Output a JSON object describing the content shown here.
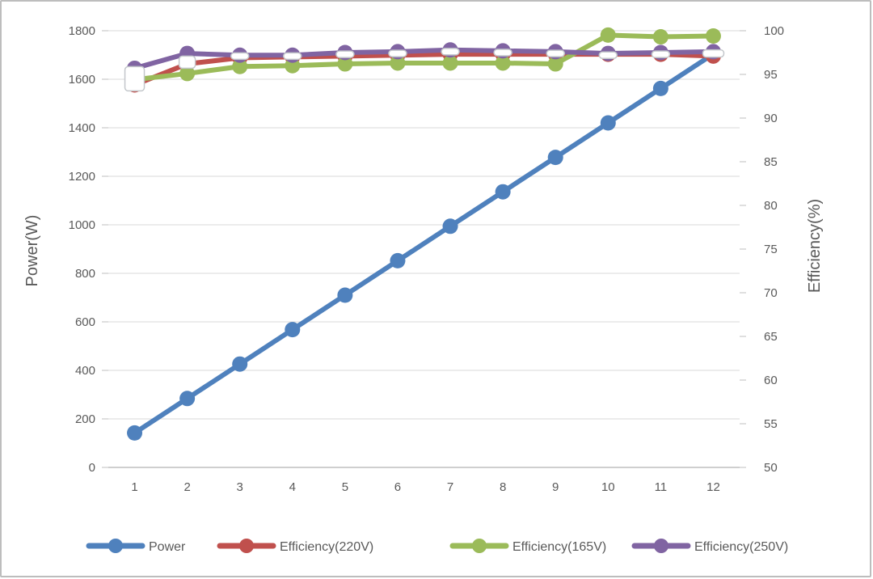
{
  "chart_data": {
    "type": "line",
    "title": "",
    "x_labels": [
      "1",
      "2",
      "3",
      "4",
      "5",
      "6",
      "7",
      "8",
      "9",
      "10",
      "11",
      "12"
    ],
    "axes": {
      "left": {
        "title": "Power(W)",
        "min": 0,
        "max": 1800,
        "step": 200,
        "ticks": [
          "1800",
          "1600",
          "1400",
          "1200",
          "1000",
          "800",
          "600",
          "400",
          "200",
          "0"
        ]
      },
      "right": {
        "title": "Efficiency(%)",
        "min": 50,
        "max": 100,
        "step": 5,
        "ticks": [
          "100",
          "95",
          "90",
          "85",
          "80",
          "75",
          "70",
          "65",
          "60",
          "55",
          "50"
        ]
      }
    },
    "series": [
      {
        "name": "Power",
        "axis": "left",
        "color": "#4F81BD",
        "marker": "circle",
        "values": [
          142,
          284,
          426,
          568,
          710,
          852,
          994,
          1136,
          1278,
          1420,
          1562,
          1704
        ]
      },
      {
        "name": "Efficiency(220V)",
        "axis": "right",
        "color": "#C0504D",
        "marker": "circle",
        "values": [
          93.8,
          96.2,
          96.9,
          97.0,
          97.1,
          97.2,
          97.3,
          97.3,
          97.3,
          97.3,
          97.3,
          97.1
        ]
      },
      {
        "name": "Efficiency(165V)",
        "axis": "right",
        "color": "#9BBB59",
        "marker": "circle",
        "values": [
          94.4,
          95.1,
          95.9,
          96.0,
          96.2,
          96.3,
          96.3,
          96.3,
          96.2,
          99.5,
          99.3,
          99.4
        ]
      },
      {
        "name": "Efficiency(250V)",
        "axis": "right",
        "color": "#8064A2",
        "marker": "circle",
        "values": [
          95.7,
          97.4,
          97.2,
          97.2,
          97.5,
          97.6,
          97.8,
          97.7,
          97.6,
          97.4,
          97.5,
          97.6
        ]
      }
    ],
    "overlay_markers": {
      "description": "white rounded markers overlapping the efficiency curves",
      "axis": "right",
      "fill": "#FFFFFF",
      "border": "#C3C7CB",
      "values": [
        94.5,
        96.4,
        97.1,
        97.1,
        97.3,
        97.4,
        97.6,
        97.5,
        97.4,
        97.2,
        97.3,
        97.4
      ],
      "sizes": [
        [
          24,
          30
        ],
        [
          20,
          15
        ],
        [
          22,
          8
        ],
        [
          22,
          8
        ],
        [
          22,
          8
        ],
        [
          22,
          8
        ],
        [
          22,
          8
        ],
        [
          22,
          8
        ],
        [
          22,
          8
        ],
        [
          22,
          8
        ],
        [
          22,
          8
        ],
        [
          26,
          9
        ]
      ]
    },
    "legend": {
      "position": "bottom",
      "items": [
        "Power",
        "Efficiency(220V)",
        "Efficiency(165V)",
        "Efficiency(250V)"
      ]
    },
    "grid": true,
    "colors": {
      "gridline": "#D9D9D9",
      "axis_line": "#BFBFBF",
      "axis_text": "#595959",
      "background": "#FFFFFF",
      "frame_border": "#BDBDBD"
    }
  }
}
